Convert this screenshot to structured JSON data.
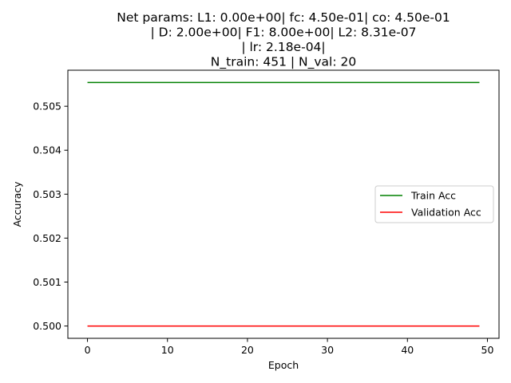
{
  "chart_data": {
    "type": "line",
    "title_lines": [
      "Net params: L1: 0.00e+00| fc: 4.50e-01| co: 4.50e-01",
      "| D: 2.00e+00| F1: 8.00e+00| L2: 8.31e-07",
      "| lr: 2.18e-04|",
      "N_train: 451 | N_val: 20"
    ],
    "xlabel": "Epoch",
    "ylabel": "Accuracy",
    "xlim": [
      -2.45,
      51.45
    ],
    "ylim": [
      0.49972,
      0.50582
    ],
    "xticks": [
      0,
      10,
      20,
      30,
      40,
      50
    ],
    "yticks": [
      0.5,
      0.501,
      0.502,
      0.503,
      0.504,
      0.505
    ],
    "xtick_labels": [
      "0",
      "10",
      "20",
      "30",
      "40",
      "50"
    ],
    "ytick_labels": [
      "0.500",
      "0.501",
      "0.502",
      "0.503",
      "0.504",
      "0.505"
    ],
    "grid": false,
    "legend_position": "center-right",
    "x_range": [
      0,
      49
    ],
    "series": [
      {
        "name": "Train Acc",
        "color": "#008000",
        "value": 0.50554
      },
      {
        "name": "Validation Acc",
        "color": "#ff0000",
        "value": 0.5
      }
    ]
  }
}
